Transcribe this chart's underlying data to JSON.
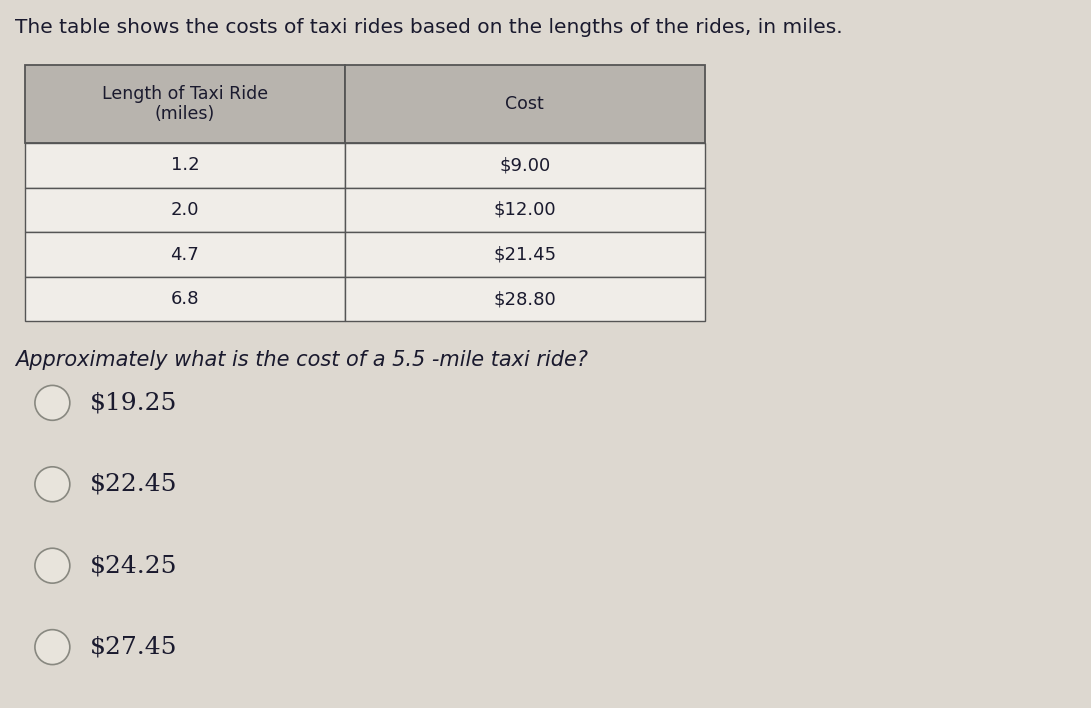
{
  "title": "The table shows the costs of taxi rides based on the lengths of the rides, in miles.",
  "title_fontsize": 14.5,
  "col1_header": "Length of Taxi Ride\n(miles)",
  "col2_header": "Cost",
  "rows": [
    [
      "1.2",
      "$9.00"
    ],
    [
      "2.0",
      "$12.00"
    ],
    [
      "4.7",
      "$21.45"
    ],
    [
      "6.8",
      "$28.80"
    ]
  ],
  "question": "Approximately what is the cost of a 5.5 -mile taxi ride?",
  "question_fontsize": 15,
  "choices": [
    "$19.25",
    "$22.45",
    "$24.25",
    "$27.45"
  ],
  "choices_fontsize": 18,
  "bg_color": "#ddd8d0",
  "header_bg": "#b8b4ae",
  "cell_bg": "#f0ede8",
  "table_border_color": "#555555",
  "text_color": "#1a1a2e"
}
